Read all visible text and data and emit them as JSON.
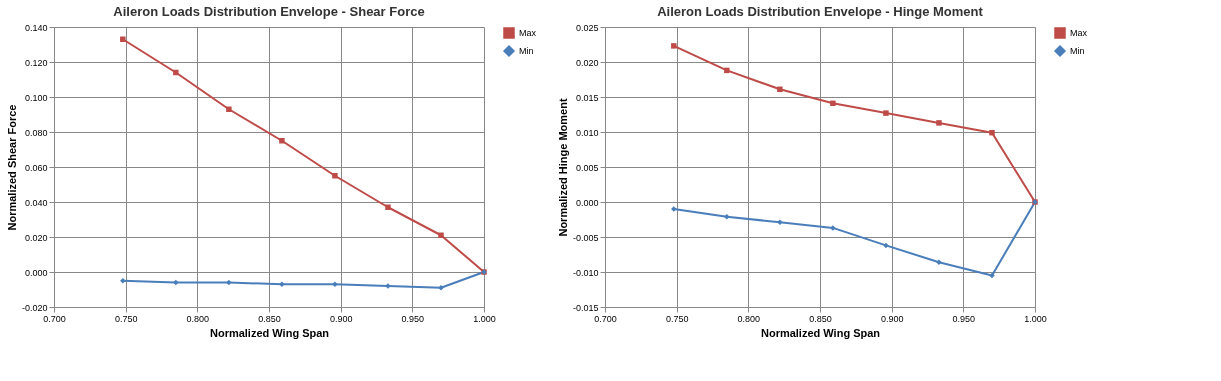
{
  "chart_data": [
    {
      "type": "line",
      "title": "Aileron Loads Distribution Envelope - Shear Force",
      "xlabel": "Normalized Wing Span",
      "ylabel": "Normalized Shear Force",
      "x": [
        0.748,
        0.785,
        0.822,
        0.859,
        0.896,
        0.933,
        0.97,
        1.0
      ],
      "series": [
        {
          "name": "Max",
          "color": "#be4b48",
          "marker": "square",
          "values": [
            0.133,
            0.114,
            0.093,
            0.075,
            0.055,
            0.037,
            0.021,
            0
          ]
        },
        {
          "name": "Min",
          "color": "#4a7ebb",
          "marker": "diamond",
          "values": [
            -0.005,
            -0.006,
            -0.006,
            -0.007,
            -0.007,
            -0.008,
            -0.009,
            0
          ]
        }
      ],
      "xlim": [
        0.7,
        1.0
      ],
      "xticks": [
        {
          "value": 0.7,
          "label": "0.700"
        },
        {
          "value": 0.75,
          "label": "0.750"
        },
        {
          "value": 0.8,
          "label": "0.800"
        },
        {
          "value": 0.85,
          "label": "0.850"
        },
        {
          "value": 0.9,
          "label": "0.900"
        },
        {
          "value": 0.95,
          "label": "0.950"
        },
        {
          "value": 1.0,
          "label": "1.000"
        }
      ],
      "ylim": [
        -0.02,
        0.14
      ],
      "yticks": [
        {
          "value": -0.02,
          "label": "-0.020"
        },
        {
          "value": 0,
          "label": "0.000"
        },
        {
          "value": 0.02,
          "label": "0.020"
        },
        {
          "value": 0.04,
          "label": "0.040"
        },
        {
          "value": 0.06,
          "label": "0.060"
        },
        {
          "value": 0.08,
          "label": "0.080"
        },
        {
          "value": 0.1,
          "label": "0.100"
        },
        {
          "value": 0.12,
          "label": "0.120"
        },
        {
          "value": 0.14,
          "label": "0.140"
        }
      ],
      "grid": true,
      "legend": "right"
    },
    {
      "type": "line",
      "title": "Aileron Loads Distribution Envelope - Hinge Moment",
      "xlabel": "Normalized Wing Span",
      "ylabel": "Normalized Hinge Moment",
      "x": [
        0.748,
        0.785,
        0.822,
        0.859,
        0.896,
        0.933,
        0.97,
        1.0
      ],
      "series": [
        {
          "name": "Max",
          "color": "#be4b48",
          "marker": "square",
          "values": [
            0.0223,
            0.0188,
            0.0161,
            0.0141,
            0.0127,
            0.0113,
            0.0099,
            0
          ]
        },
        {
          "name": "Min",
          "color": "#4a7ebb",
          "marker": "diamond",
          "values": [
            -0.001,
            -0.0021,
            -0.0029,
            -0.0037,
            -0.0062,
            -0.0086,
            -0.0105,
            0
          ]
        }
      ],
      "xlim": [
        0.7,
        1.0
      ],
      "xticks": [
        {
          "value": 0.7,
          "label": "0.700"
        },
        {
          "value": 0.75,
          "label": "0.750"
        },
        {
          "value": 0.8,
          "label": "0.800"
        },
        {
          "value": 0.85,
          "label": "0.850"
        },
        {
          "value": 0.9,
          "label": "0.900"
        },
        {
          "value": 0.95,
          "label": "0.950"
        },
        {
          "value": 1.0,
          "label": "1.000"
        }
      ],
      "ylim": [
        -0.015,
        0.025
      ],
      "yticks": [
        {
          "value": -0.015,
          "label": "-0.015"
        },
        {
          "value": -0.01,
          "label": "-0.010"
        },
        {
          "value": -0.005,
          "label": "-0.005"
        },
        {
          "value": 0,
          "label": "0.000"
        },
        {
          "value": 0.005,
          "label": "0.005"
        },
        {
          "value": 0.01,
          "label": "0.010"
        },
        {
          "value": 0.015,
          "label": "0.015"
        },
        {
          "value": 0.02,
          "label": "0.020"
        },
        {
          "value": 0.025,
          "label": "0.025"
        }
      ],
      "grid": true,
      "legend": "right"
    }
  ]
}
